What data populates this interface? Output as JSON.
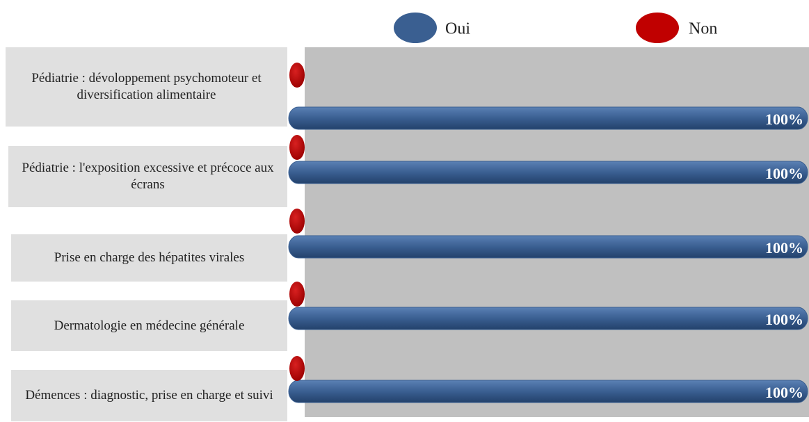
{
  "chart_data": {
    "type": "bar",
    "orientation": "horizontal",
    "categories": [
      "Pédiatrie : dévoloppement psychomoteur et diversification alimentaire",
      "Pédiatrie : l'exposition excessive et précoce aux écrans",
      "Prise en charge des hépatites virales",
      "Dermatologie en médecine générale",
      "Démences : diagnostic, prise en charge et suivi"
    ],
    "series": [
      {
        "name": "Oui",
        "color": "#3a5f91",
        "values": [
          100,
          100,
          100,
          100,
          100
        ],
        "value_labels": [
          "100%",
          "100%",
          "100%",
          "100%",
          "100%"
        ]
      },
      {
        "name": "Non",
        "color": "#c00000",
        "values": [
          0,
          0,
          0,
          0,
          0
        ]
      }
    ],
    "xlim": [
      0,
      100
    ],
    "legend": "top"
  }
}
